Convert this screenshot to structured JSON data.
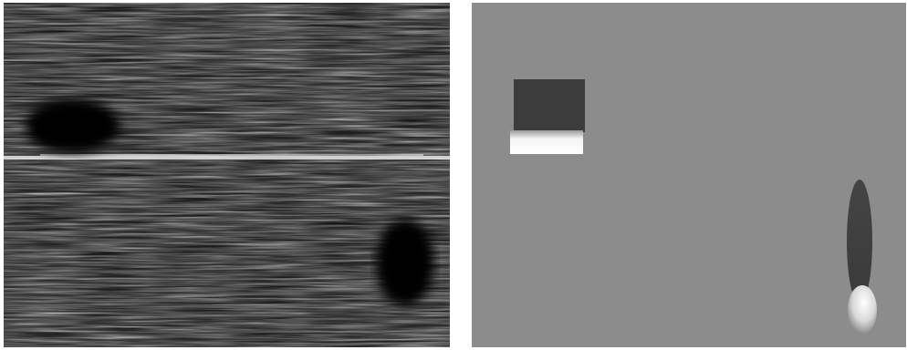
{
  "figure": {
    "panels": [
      {
        "id": "left",
        "description_name": "speckle-ultrasound-image"
      },
      {
        "id": "right",
        "description_name": "simulated-phantom-image"
      }
    ],
    "colors": {
      "background": "#ffffff",
      "left_base": "#151515",
      "right_base": "#8c8c8c",
      "noise_dark": "#3a3a3a",
      "block_dark": "#3c3c3c",
      "shadow_dark": "#3e3e3e"
    }
  }
}
